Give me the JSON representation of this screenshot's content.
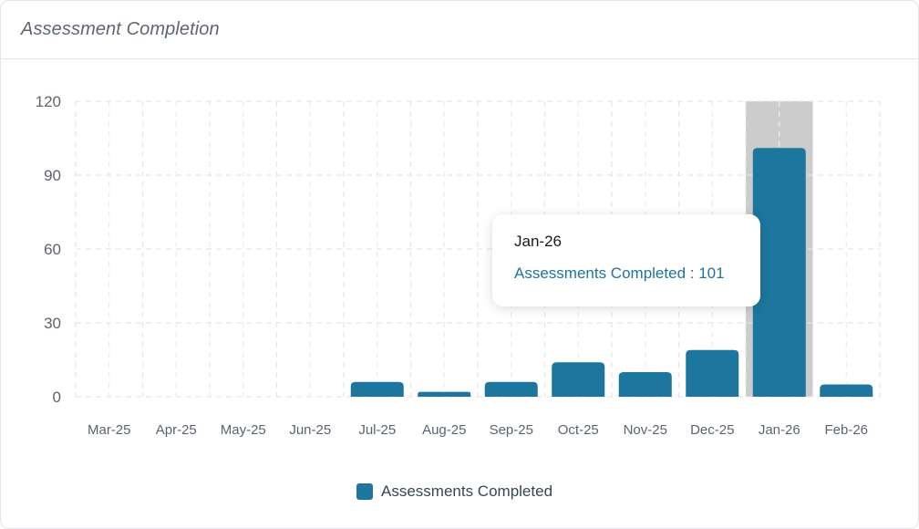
{
  "card": {
    "title": "Assessment Completion"
  },
  "chart_data": {
    "type": "bar",
    "categories": [
      "Mar-25",
      "Apr-25",
      "May-25",
      "Jun-25",
      "Jul-25",
      "Aug-25",
      "Sep-25",
      "Oct-25",
      "Nov-25",
      "Dec-25",
      "Jan-26",
      "Feb-26"
    ],
    "series": [
      {
        "name": "Assessments Completed",
        "values": [
          0,
          0,
          0,
          0,
          6,
          2,
          6,
          14,
          10,
          19,
          101,
          5
        ],
        "color": "#1d769d"
      }
    ],
    "yticks": [
      "0",
      "30",
      "60",
      "90",
      "120"
    ],
    "ylim": [
      0,
      120
    ],
    "grid": true,
    "legend_position": "bottom-center",
    "highlight_color": "#cccccc",
    "highlighted_category": "Jan-26"
  },
  "tooltip": {
    "title": "Jan-26",
    "label": "Assessments Completed : 101"
  },
  "legend": {
    "label": "Assessments Completed",
    "color": "#1d769d"
  }
}
